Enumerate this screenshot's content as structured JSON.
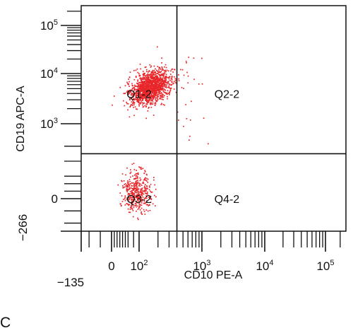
{
  "chart_data": {
    "type": "scatter",
    "panel_label": "C",
    "xlabel": "CD10 PE-A",
    "ylabel": "CD19 APC-A",
    "x_ticks": [
      {
        "value": -135,
        "label": "−135"
      },
      {
        "value": 0,
        "label": "0"
      },
      {
        "value": 100,
        "label": "10",
        "exp": "2"
      },
      {
        "value": 1000,
        "label": "10",
        "exp": "3"
      },
      {
        "value": 10000,
        "label": "10",
        "exp": "4"
      },
      {
        "value": 100000,
        "label": "10",
        "exp": "5"
      }
    ],
    "y_ticks": [
      {
        "value": -266,
        "label": "−266"
      },
      {
        "value": 0,
        "label": "0"
      },
      {
        "value": 1000,
        "label": "10",
        "exp": "3"
      },
      {
        "value": 10000,
        "label": "10",
        "exp": "4"
      },
      {
        "value": 100000,
        "label": "10",
        "exp": "5"
      }
    ],
    "gates": {
      "x": 400,
      "y": 600
    },
    "quadrants": [
      {
        "label": "Q1-2",
        "x": 100,
        "y": 4000
      },
      {
        "label": "Q2-2",
        "x": 2500,
        "y": 4000
      },
      {
        "label": "Q3-2",
        "x": 100,
        "y": 0
      },
      {
        "label": "Q4-2",
        "x": 2500,
        "y": 0
      }
    ],
    "populations": [
      {
        "name": "",
        "x_center": 150,
        "y_center": 5500,
        "n": 1500,
        "color": "#e8262a"
      },
      {
        "name": "",
        "x_center": 90,
        "y_center": 100,
        "n": 420,
        "color": "#e8262a"
      }
    ],
    "grid": false
  }
}
